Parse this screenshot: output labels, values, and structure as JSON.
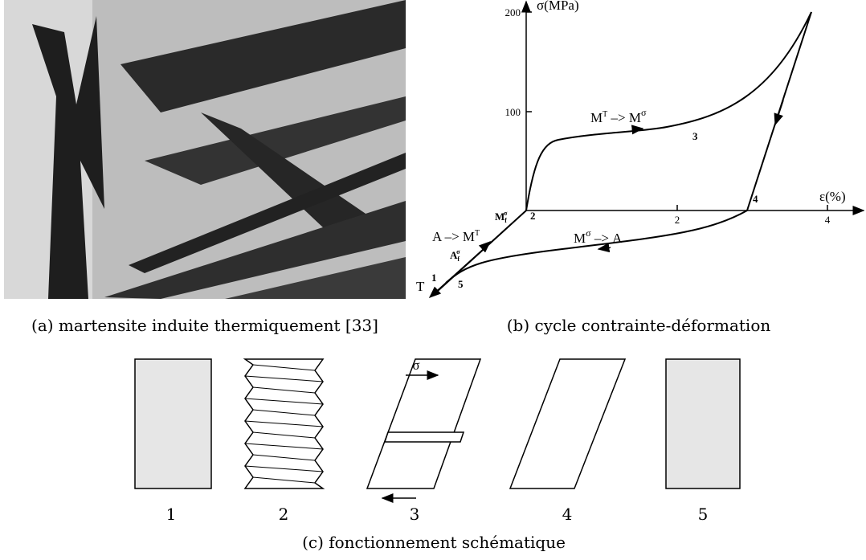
{
  "panel_a": {
    "caption": "(a) martensite induite thermiquement [33]"
  },
  "panel_b": {
    "caption": "(b) cycle contrainte-déformation",
    "y_axis_label": "σ(MPa)",
    "x_axis_label": "ε(%)",
    "y_ticks": [
      "100",
      "200"
    ],
    "x_ticks": [
      "2",
      "4"
    ],
    "points": [
      "1",
      "2",
      "3",
      "4",
      "5"
    ],
    "axis_t": "T",
    "forward_transformation": [
      "M",
      "T",
      " –> M",
      "σ"
    ],
    "reverse_transformation": [
      "M",
      "σ",
      " –> A"
    ],
    "thermal_transformation": [
      "A –> M",
      "T"
    ],
    "mf": [
      "M",
      "f",
      "σ"
    ],
    "af": [
      "A",
      "f",
      "σ"
    ]
  },
  "panel_c": {
    "caption": "(c) fonctionnement schématique",
    "stress_symbol": "σ",
    "stages": [
      "1",
      "2",
      "3",
      "4",
      "5"
    ]
  }
}
